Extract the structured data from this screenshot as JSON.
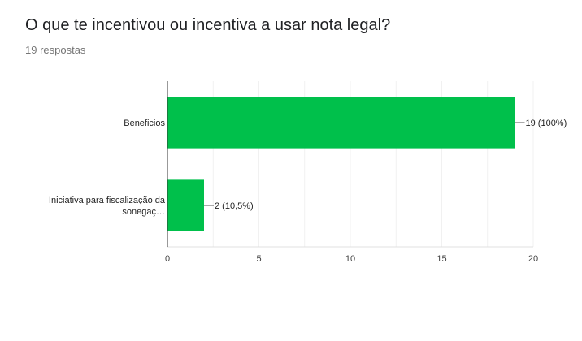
{
  "header": {
    "title": "O que te incentivou ou incentiva a usar nota legal?",
    "response_count": "19 respostas"
  },
  "colors": {
    "bar": "#00c04b",
    "axis": "#333333",
    "grid": "#e0e0e0"
  },
  "chart_data": {
    "type": "bar",
    "orientation": "horizontal",
    "categories": [
      [
        "Beneficios"
      ],
      [
        "Iniciativa para fiscalização da",
        "sonegaç…"
      ]
    ],
    "values": [
      19,
      2
    ],
    "data_labels": [
      "19 (100%)",
      "2 (10,5%)"
    ],
    "xlim": [
      0,
      20
    ],
    "xticks": [
      0,
      5,
      10,
      15,
      20
    ],
    "grid": true
  }
}
